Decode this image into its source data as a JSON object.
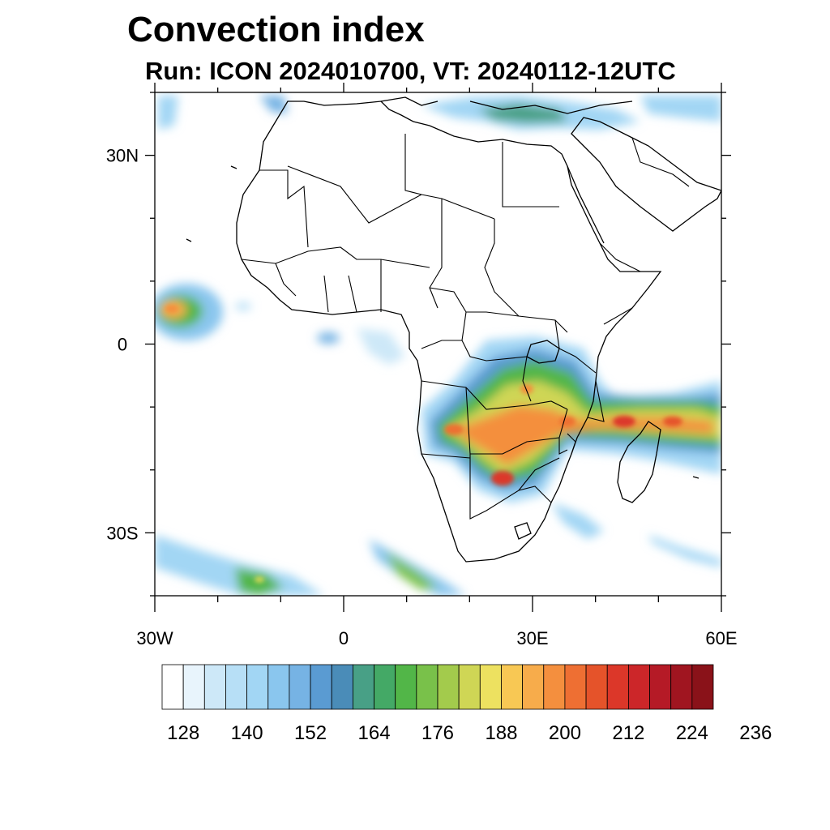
{
  "title": "Convection index",
  "subtitle": "Run: ICON 2024010700,  VT: 20240112-12UTC",
  "map": {
    "lon_range": [
      -30,
      60
    ],
    "lat_range": [
      -40,
      40
    ],
    "lat_ticks": [
      {
        "value": 30,
        "label": "30N"
      },
      {
        "value": 0,
        "label": "0"
      },
      {
        "value": -30,
        "label": "30S"
      }
    ],
    "lon_ticks": [
      {
        "value": -30,
        "label": "30W"
      },
      {
        "value": 0,
        "label": "0"
      },
      {
        "value": 30,
        "label": "30E"
      },
      {
        "value": 60,
        "label": "60E"
      }
    ],
    "minor_lat_ticks": [
      40,
      20,
      10,
      -10,
      -20,
      -40
    ],
    "minor_lon_ticks": [
      -20,
      -10,
      10,
      20,
      40,
      50
    ]
  },
  "colorbar": {
    "colors": [
      "#ffffff",
      "#e8f4fc",
      "#cde8f8",
      "#b7dff6",
      "#a2d6f4",
      "#8ac6ee",
      "#76b3e4",
      "#5a9bd2",
      "#4a8cb8",
      "#48a086",
      "#44a966",
      "#52b648",
      "#79c14a",
      "#a3cb4c",
      "#cfd655",
      "#ede160",
      "#f8c854",
      "#f7ac4b",
      "#f48f3e",
      "#ee6f33",
      "#e5532a",
      "#dc3729",
      "#cc2629",
      "#b51a26",
      "#a01520",
      "#8a1219"
    ],
    "tick_labels": [
      "128",
      "140",
      "152",
      "164",
      "176",
      "188",
      "200",
      "212",
      "224",
      "236"
    ],
    "tick_positions": [
      2,
      5,
      8,
      11,
      14,
      17,
      20,
      23,
      26,
      29
    ]
  }
}
